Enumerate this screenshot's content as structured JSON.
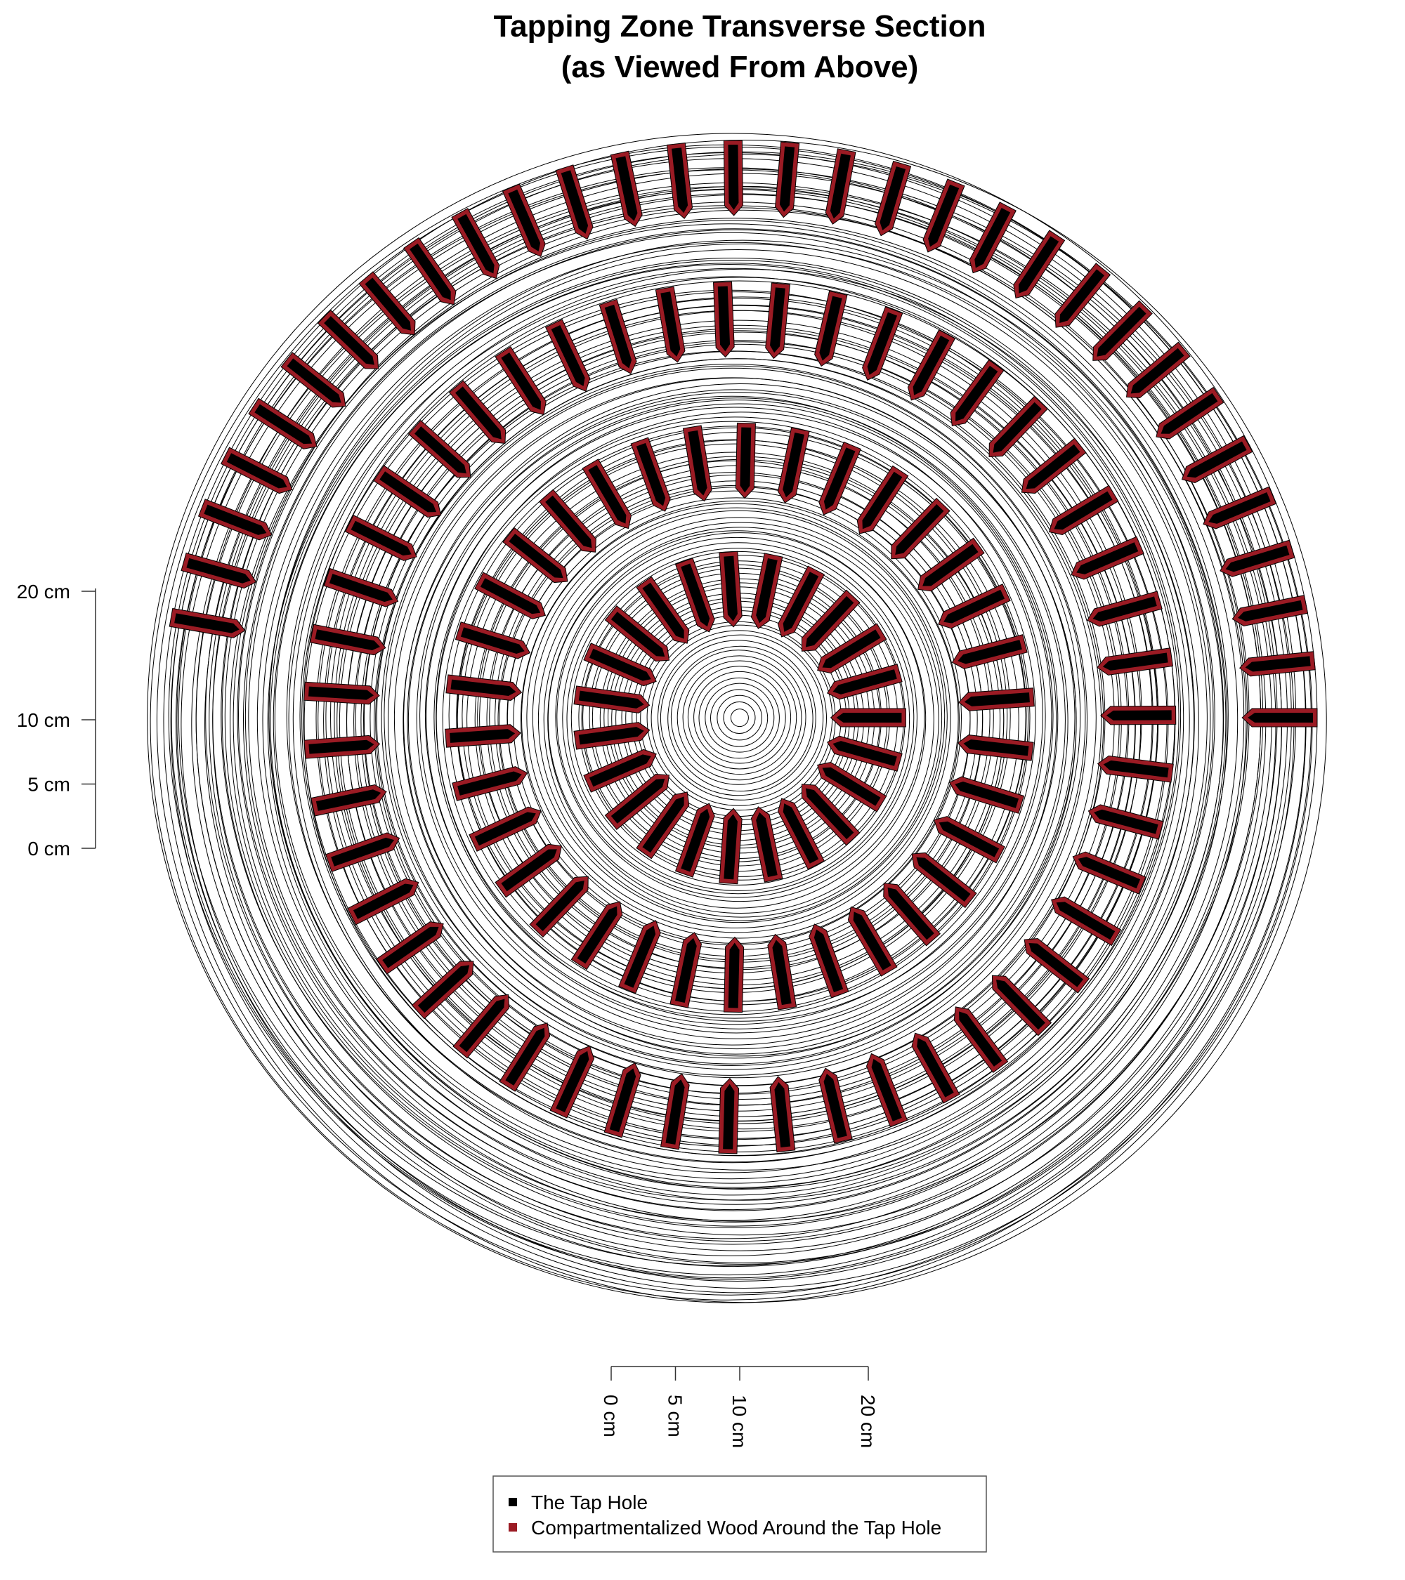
{
  "chart_data": {
    "type": "diagram",
    "title": [
      "Tapping Zone Transverse Section",
      "(as Viewed From Above)"
    ],
    "units": "cm",
    "left_scale_ticks": [
      {
        "value": 0,
        "label": "0 cm"
      },
      {
        "value": 5,
        "label": "5 cm"
      },
      {
        "value": 10,
        "label": "10 cm"
      },
      {
        "value": 20,
        "label": "20 cm"
      }
    ],
    "bottom_scale_ticks": [
      {
        "value": 0,
        "label": "0 cm"
      },
      {
        "value": 5,
        "label": "5 cm"
      },
      {
        "value": 10,
        "label": "10 cm"
      },
      {
        "value": 20,
        "label": "20 cm"
      }
    ],
    "tap_hole_rings": [
      {
        "ring": 1,
        "count": 23,
        "start_angle_deg": 0,
        "inner_radius_cm": 7.3,
        "outer_radius_cm": 12.7
      },
      {
        "ring": 2,
        "count": 34,
        "start_angle_deg": 4,
        "inner_radius_cm": 17.3,
        "outer_radius_cm": 22.7
      },
      {
        "ring": 3,
        "count": 47,
        "start_angle_deg": 8,
        "inner_radius_cm": 28.3,
        "outer_radius_cm": 33.7
      },
      {
        "ring": 4,
        "count": 31,
        "start_angle_deg": 0,
        "span_deg": 170,
        "inner_radius_cm": 39.3,
        "outer_radius_cm": 44.7
      }
    ],
    "growth_rings": {
      "count": 140,
      "max_radius_cm": 45.5
    },
    "legend": [
      {
        "label": "The Tap Hole",
        "color": "#000000"
      },
      {
        "label": "Compartmentalized Wood Around the Tap Hole",
        "color": "#9b1b24"
      }
    ],
    "colors": {
      "tap_hole": "#000000",
      "compartmentalized": "#9b1b24",
      "rings": "#000000"
    }
  }
}
